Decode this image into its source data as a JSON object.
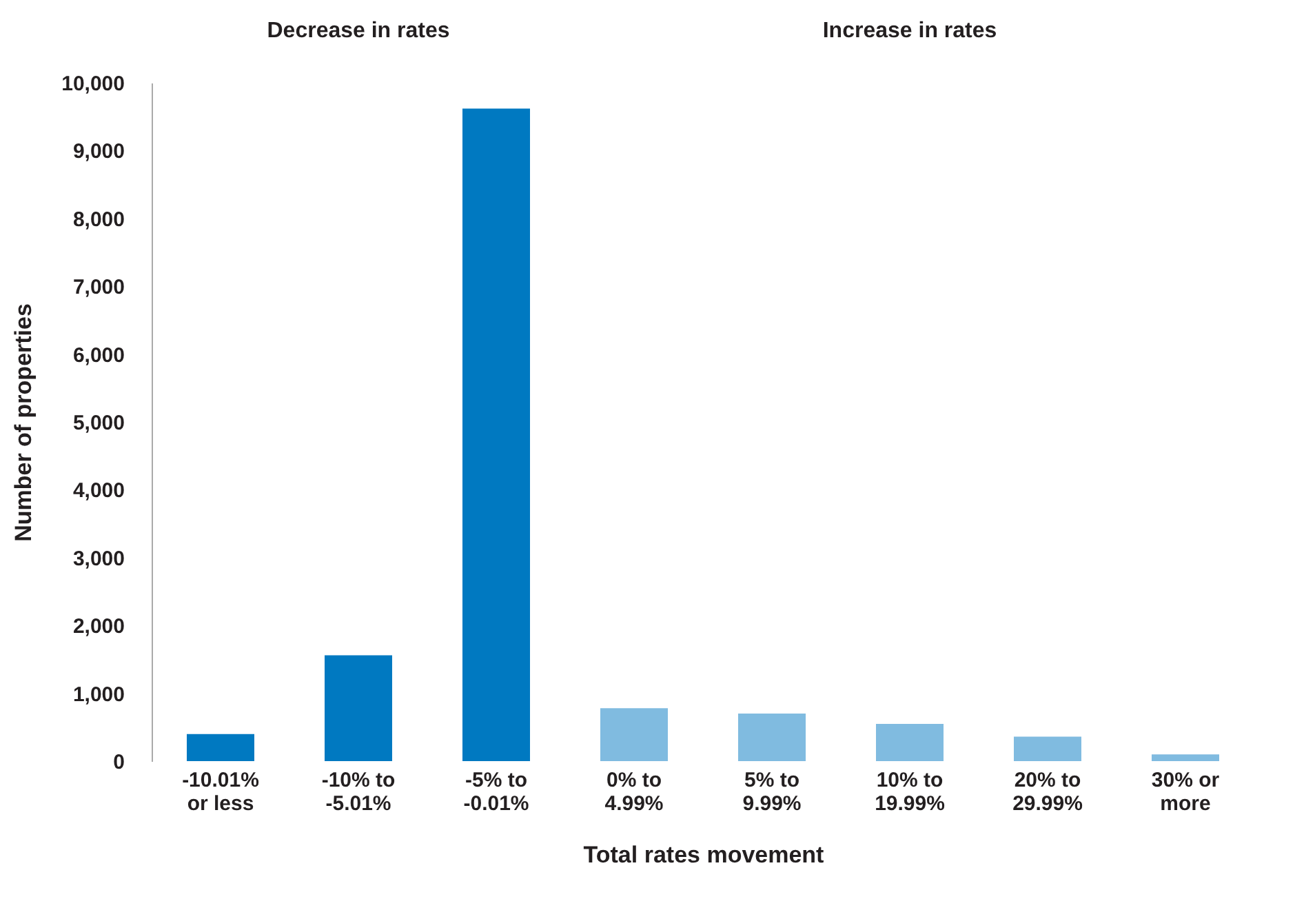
{
  "chart_data": {
    "type": "bar",
    "xlabel": "Total rates movement",
    "ylabel": "Number of properties",
    "categories": [
      "-10.01%\nor less",
      "-10% to\n-5.01%",
      "-5% to\n-0.01%",
      "0% to\n4.99%",
      "5% to\n9.99%",
      "10% to\n19.99%",
      "20% to\n29.99%",
      "30% or\nmore"
    ],
    "values": [
      400,
      1560,
      9620,
      780,
      700,
      550,
      360,
      100
    ],
    "colors": [
      "#0079c1",
      "#0079c1",
      "#0079c1",
      "#80bbe0",
      "#80bbe0",
      "#80bbe0",
      "#80bbe0",
      "#80bbe0"
    ],
    "ylim": [
      0,
      10000
    ],
    "yticks": [
      0,
      {
        "value": 1000,
        "label": "1,000"
      },
      {
        "value": 2000,
        "label": "2,000"
      },
      {
        "value": 3000,
        "label": "3,000"
      },
      {
        "value": 4000,
        "label": "4,000"
      },
      {
        "value": 5000,
        "label": "5,000"
      },
      {
        "value": 6000,
        "label": "6,000"
      },
      {
        "value": 7000,
        "label": "7,000"
      },
      {
        "value": 8000,
        "label": "8,000"
      },
      {
        "value": 9000,
        "label": "9,000"
      },
      {
        "value": 10000,
        "label": "10,000"
      }
    ],
    "annotations": [
      "Decrease in rates",
      "Increase in rates"
    ]
  }
}
